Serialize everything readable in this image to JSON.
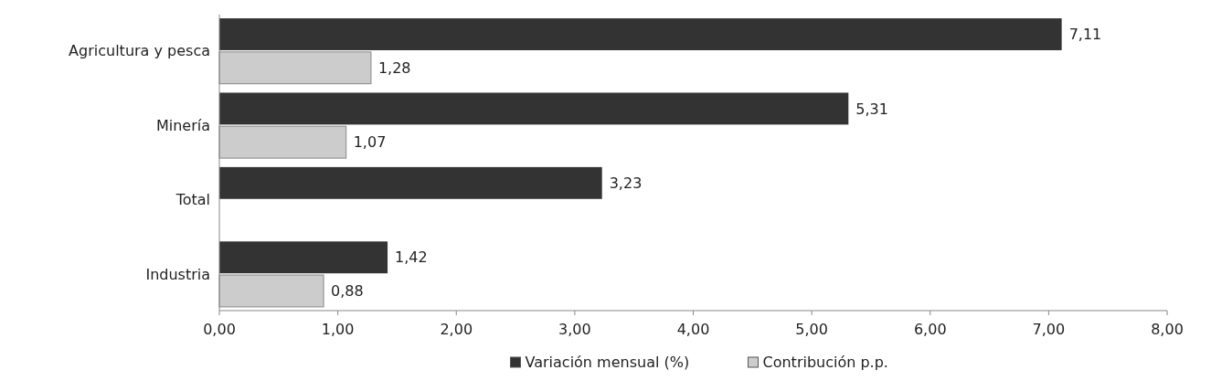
{
  "chart_data": {
    "type": "bar",
    "orientation": "horizontal",
    "categories": [
      "Agricultura y pesca",
      "Minería",
      "Total",
      "Industria"
    ],
    "series": [
      {
        "name": "Variación mensual (%)",
        "color": "#333333",
        "values": [
          7.11,
          5.31,
          3.23,
          1.42
        ],
        "value_labels": [
          "7,11",
          "5,31",
          "3,23",
          "1,42"
        ]
      },
      {
        "name": "Contribución p.p.",
        "color": "#cccccc",
        "values": [
          1.28,
          1.07,
          null,
          0.88
        ],
        "value_labels": [
          "1,28",
          "1,07",
          null,
          "0,88"
        ]
      }
    ],
    "xlim": [
      0,
      8
    ],
    "xticks": [
      {
        "value": 0,
        "label": "0,00"
      },
      {
        "value": 1,
        "label": "1,00"
      },
      {
        "value": 2,
        "label": "2,00"
      },
      {
        "value": 3,
        "label": "3,00"
      },
      {
        "value": 4,
        "label": "4,00"
      },
      {
        "value": 5,
        "label": "5,00"
      },
      {
        "value": 6,
        "label": "6,00"
      },
      {
        "value": 7,
        "label": "7,00"
      },
      {
        "value": 8,
        "label": "8,00"
      }
    ],
    "grid": false,
    "legend": "bottom"
  }
}
